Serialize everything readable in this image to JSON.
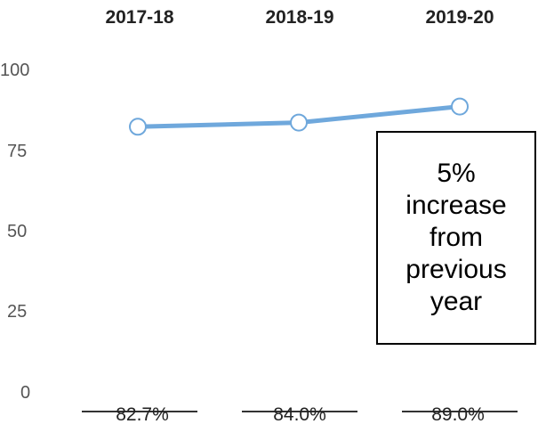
{
  "chart_data": {
    "type": "line",
    "categories": [
      "2017-18",
      "2018-19",
      "2019-20"
    ],
    "series": [
      {
        "values": [
          82.7,
          84.0,
          89.0
        ],
        "color": "#6fa8dc"
      }
    ],
    "value_labels": [
      "82.7%",
      "84.0%",
      "89.0%"
    ],
    "y_ticks": [
      "100",
      "75",
      "50",
      "25",
      "0"
    ],
    "ylim": [
      0,
      100
    ],
    "category_axis_position": "top",
    "grid": false,
    "annotation": "5% increase from previous year"
  }
}
